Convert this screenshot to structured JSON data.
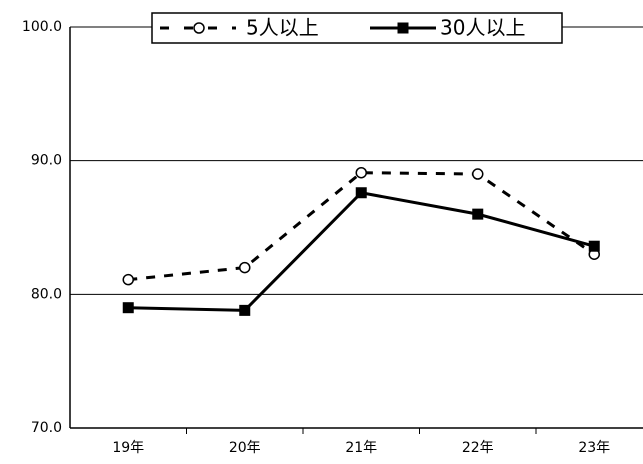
{
  "chart_data": {
    "type": "line",
    "categories": [
      "19年",
      "20年",
      "21年",
      "22年",
      "23年"
    ],
    "series": [
      {
        "name": "5人以上",
        "color": "#000000",
        "values": [
          81.1,
          82.0,
          89.1,
          89.0,
          83.0
        ]
      },
      {
        "name": "30人以上",
        "color": "#000000",
        "values": [
          79.0,
          78.8,
          87.6,
          86.0,
          83.6
        ]
      }
    ],
    "ylim": [
      70,
      100
    ],
    "yticks": [
      {
        "value": 70,
        "label": "70.0"
      },
      {
        "value": 80,
        "label": "80.0"
      },
      {
        "value": 90,
        "label": "90.0"
      },
      {
        "value": 100,
        "label": "100.0"
      }
    ],
    "grid": true,
    "legend": "top"
  }
}
